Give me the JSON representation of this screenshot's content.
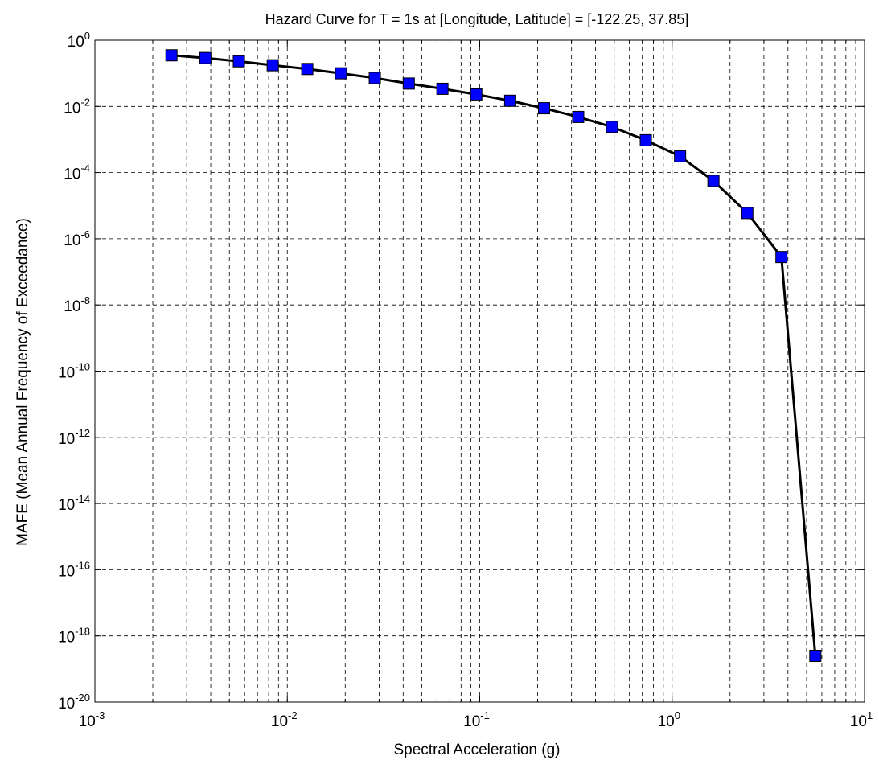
{
  "chart_data": {
    "type": "line",
    "title": "Hazard Curve for T = 1s at [Longitude, Latitude] = [-122.25, 37.85]",
    "xlabel": "Spectral Acceleration (g)",
    "ylabel": "MAFE (Mean Annual Frequency of Exceedance)",
    "xscale": "log",
    "yscale": "log",
    "xlim": [
      0.001,
      10
    ],
    "ylim": [
      1e-20,
      1
    ],
    "grid": true,
    "x_tick_labels": [
      {
        "base": "10",
        "exp": "-3"
      },
      {
        "base": "10",
        "exp": "-2"
      },
      {
        "base": "10",
        "exp": "-1"
      },
      {
        "base": "10",
        "exp": "0"
      },
      {
        "base": "10",
        "exp": "1"
      }
    ],
    "y_tick_labels": [
      {
        "base": "10",
        "exp": "-20"
      },
      {
        "base": "10",
        "exp": "-18"
      },
      {
        "base": "10",
        "exp": "-16"
      },
      {
        "base": "10",
        "exp": "-14"
      },
      {
        "base": "10",
        "exp": "-12"
      },
      {
        "base": "10",
        "exp": "-10"
      },
      {
        "base": "10",
        "exp": "-8"
      },
      {
        "base": "10",
        "exp": "-6"
      },
      {
        "base": "10",
        "exp": "-4"
      },
      {
        "base": "10",
        "exp": "-2"
      },
      {
        "base": "10",
        "exp": "0"
      }
    ],
    "series": [
      {
        "line_color": "#000000",
        "marker": "square",
        "marker_color": "#0000ff",
        "x": [
          0.0025,
          0.00375,
          0.0056,
          0.0084,
          0.0127,
          0.019,
          0.0285,
          0.0428,
          0.064,
          0.096,
          0.144,
          0.216,
          0.325,
          0.487,
          0.73,
          1.1,
          1.64,
          2.46,
          3.7,
          5.55
        ],
        "y": [
          0.35,
          0.29,
          0.23,
          0.175,
          0.135,
          0.1,
          0.072,
          0.049,
          0.034,
          0.023,
          0.0148,
          0.0088,
          0.0048,
          0.0024,
          0.00095,
          0.00031,
          5.6e-05,
          6e-06,
          2.8e-07,
          2.5e-19
        ]
      }
    ]
  }
}
